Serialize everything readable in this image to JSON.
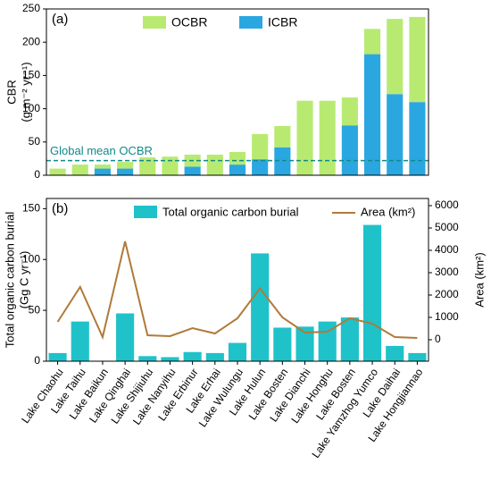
{
  "chart_data": [
    {
      "type": "stacked_bar",
      "title": "(a)",
      "y_label": [
        "CBR",
        "(g m⁻² yr⁻¹)"
      ],
      "series": [
        {
          "name": "ICBR",
          "color": "#2aa7e0",
          "values": [
            0,
            0,
            10,
            10,
            0,
            0,
            13,
            0,
            16,
            24,
            42,
            0,
            0,
            75,
            182,
            122,
            110
          ]
        },
        {
          "name": "OCBR",
          "color": "#b8ea72",
          "values": [
            10,
            16,
            6,
            10,
            27,
            28,
            18,
            31,
            19,
            38,
            32,
            112,
            112,
            42,
            38,
            113,
            128
          ]
        }
      ],
      "reference_line": {
        "label": "Global mean OCBR",
        "value": 22,
        "color": "#0f8a8a"
      },
      "ylim": [
        0,
        250
      ],
      "yticks": [
        0,
        50,
        100,
        150,
        200,
        250
      ]
    },
    {
      "type": "bar_line",
      "title": "(b)",
      "y_label": [
        "Total organic carbon burial",
        "(Gg C yr⁻¹)"
      ],
      "y2_label": "Area (km²)",
      "categories": [
        "Lake Chaohu",
        "Lake Taihu",
        "Lake Baikun",
        "Lake Qinghai",
        "Lake Shijiuhu",
        "Lake Nanyihu",
        "Lake Erbinur",
        "Lake Erhai",
        "Lake Wulungu",
        "Lake Hulun",
        "Lake Bosten",
        "Lake Dianchi",
        "Lake Honghu",
        "Lake Bosten",
        "Lake Yamzhog Yumco",
        "Lake Daihai",
        "Lake Hongjiannao"
      ],
      "series": [
        {
          "name": "Total organic carbon burial",
          "color": "#1fc2c9",
          "values": [
            8,
            39,
            0,
            47,
            5,
            4,
            9,
            8,
            18,
            106,
            33,
            34,
            39,
            43,
            134,
            15,
            8
          ]
        },
        {
          "name": "Area (km²)",
          "color": "#b07a3a",
          "axis": "y2",
          "values": [
            800,
            2360,
            120,
            4400,
            200,
            160,
            520,
            280,
            960,
            2300,
            1000,
            320,
            360,
            960,
            720,
            120,
            80
          ]
        }
      ],
      "ylim": [
        0,
        160
      ],
      "yticks": [
        0,
        50,
        100,
        150
      ],
      "y2lim": [
        -960,
        6320
      ],
      "y2ticks": [
        0,
        1000,
        2000,
        3000,
        4000,
        5000,
        6000
      ]
    }
  ]
}
